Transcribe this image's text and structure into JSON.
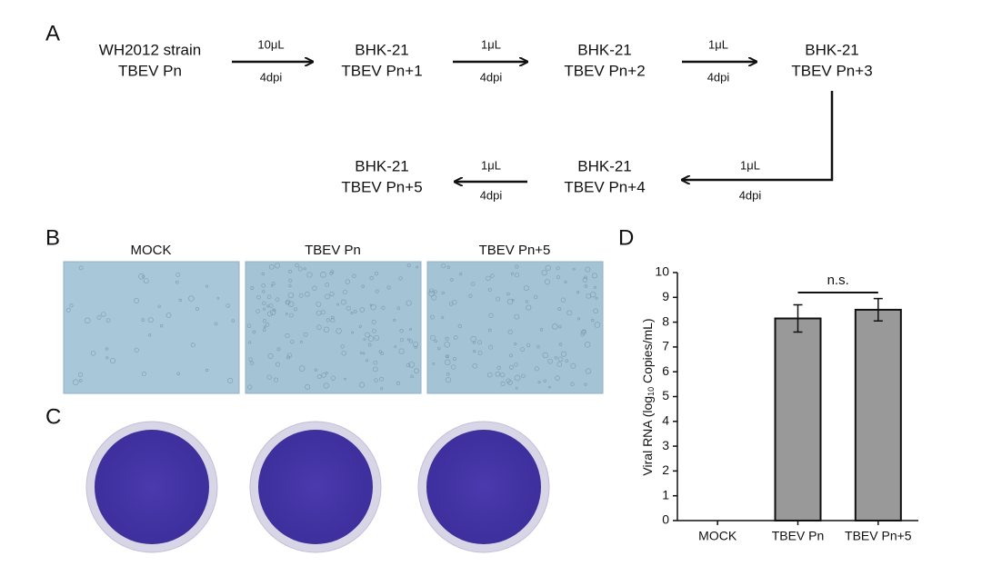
{
  "panel_labels": [
    "A",
    "B",
    "C",
    "D"
  ],
  "diagram": {
    "nodes": [
      {
        "lines": [
          "WH2012 strain",
          "TBEV Pn"
        ]
      },
      {
        "lines": [
          "BHK-21",
          "TBEV Pn+1"
        ]
      },
      {
        "lines": [
          "BHK-21",
          "TBEV Pn+2"
        ]
      },
      {
        "lines": [
          "BHK-21",
          "TBEV Pn+3"
        ]
      },
      {
        "lines": [
          "BHK-21",
          "TBEV Pn+4"
        ]
      },
      {
        "lines": [
          "BHK-21",
          "TBEV Pn+5"
        ]
      }
    ],
    "edges": [
      {
        "volume": "10μL",
        "time": "4dpi"
      },
      {
        "volume": "1μL",
        "time": "4dpi"
      },
      {
        "volume": "1μL",
        "time": "4dpi"
      },
      {
        "volume": "1μL",
        "time": "4dpi"
      },
      {
        "volume": "1μL",
        "time": "4dpi"
      }
    ]
  },
  "micrographs": {
    "labels": [
      "MOCK",
      "TBEV Pn",
      "TBEV Pn+5"
    ]
  },
  "chart_data": {
    "type": "bar",
    "y_label": [
      "Viral RNA (log",
      "10",
      " Copies/mL)"
    ],
    "categories": [
      "MOCK",
      "TBEV Pn",
      "TBEV Pn+5"
    ],
    "values": [
      null,
      8.15,
      8.5
    ],
    "errors": [
      null,
      0.55,
      0.45
    ],
    "color": "#999999",
    "ylim": [
      0,
      10
    ],
    "yticks": [
      0,
      1,
      2,
      3,
      4,
      5,
      6,
      7,
      8,
      9,
      10
    ],
    "annotation": "n.s."
  }
}
